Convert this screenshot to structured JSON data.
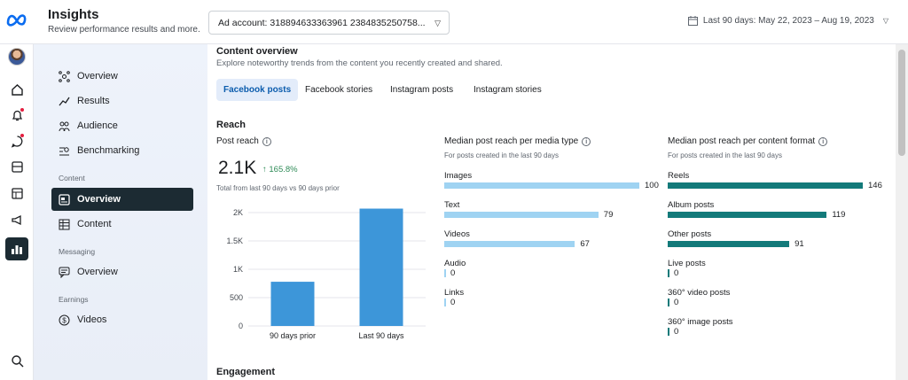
{
  "header": {
    "title": "Insights",
    "subtitle": "Review performance results and more.",
    "ad_account": "Ad account: 318894633363961 2384835250758...",
    "date_range": "Last 90 days: May 22, 2023 – Aug 19, 2023"
  },
  "nav": {
    "items": [
      {
        "label": "Overview",
        "icon": "hierarchy-icon"
      },
      {
        "label": "Results",
        "icon": "trend-icon"
      },
      {
        "label": "Audience",
        "icon": "people-icon"
      },
      {
        "label": "Benchmarking",
        "icon": "compare-icon"
      }
    ],
    "content_heading": "Content",
    "content_items": [
      {
        "label": "Overview",
        "icon": "posts-icon",
        "selected": true
      },
      {
        "label": "Content",
        "icon": "table-icon"
      }
    ],
    "messaging_heading": "Messaging",
    "messaging_items": [
      {
        "label": "Overview",
        "icon": "chat-icon"
      }
    ],
    "earnings_heading": "Earnings",
    "earnings_items": [
      {
        "label": "Videos",
        "icon": "dollar-icon"
      }
    ]
  },
  "content_overview": {
    "title": "Content overview",
    "subtitle": "Explore noteworthy trends from the content you recently created and shared.",
    "tabs": [
      "Facebook posts",
      "Facebook stories",
      "Instagram posts",
      "Instagram stories"
    ],
    "active_tab": 0
  },
  "reach": {
    "title": "Reach",
    "post_reach_title": "Post reach",
    "value": "2.1K",
    "change": "↑ 165.8%",
    "note": "Total from last 90 days vs 90 days prior",
    "media_title": "Median post reach per media type",
    "media_sub": "For posts created in the last 90 days",
    "format_title": "Median post reach per content format",
    "format_sub": "For posts created in the last 90 days"
  },
  "chart_data": [
    {
      "type": "bar",
      "title": "Post reach",
      "categories": [
        "90 days prior",
        "Last 90 days"
      ],
      "values": [
        780,
        2070
      ],
      "ylim": [
        0,
        2000
      ],
      "yticks": [
        "0",
        "500",
        "1K",
        "1.5K",
        "2K"
      ],
      "color": "#3d96d9"
    },
    {
      "type": "bar",
      "orientation": "horizontal",
      "title": "Median post reach per media type",
      "categories": [
        "Images",
        "Text",
        "Videos",
        "Audio",
        "Links"
      ],
      "values": [
        100,
        79,
        67,
        0,
        0
      ],
      "color": "#9fd3f2"
    },
    {
      "type": "bar",
      "orientation": "horizontal",
      "title": "Median post reach per content format",
      "categories": [
        "Reels",
        "Album posts",
        "Other posts",
        "Live posts",
        "360° video posts",
        "360° image posts"
      ],
      "values": [
        146,
        119,
        91,
        0,
        0,
        0
      ],
      "color": "#137a7a"
    }
  ],
  "engagement": {
    "title": "Engagement"
  }
}
